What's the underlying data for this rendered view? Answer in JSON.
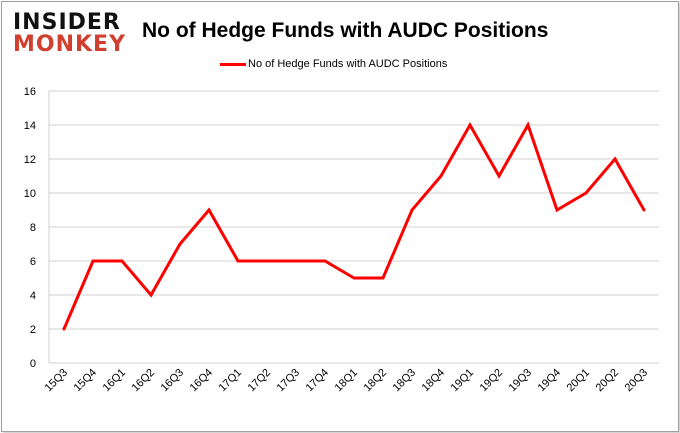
{
  "logo": {
    "line1": "INSIDER",
    "line2": "MONKEY"
  },
  "chart_data": {
    "type": "line",
    "title": "No of Hedge Funds with AUDC Positions",
    "categories": [
      "15Q3",
      "15Q4",
      "16Q1",
      "16Q2",
      "16Q3",
      "16Q4",
      "17Q1",
      "17Q2",
      "17Q3",
      "17Q4",
      "18Q1",
      "18Q2",
      "18Q3",
      "18Q4",
      "19Q1",
      "19Q2",
      "19Q3",
      "19Q4",
      "20Q1",
      "20Q2",
      "20Q3"
    ],
    "series": [
      {
        "name": "No of Hedge Funds with AUDC Positions",
        "color": "#ff0000",
        "values": [
          2,
          6,
          6,
          4,
          7,
          9,
          6,
          6,
          6,
          6,
          5,
          5,
          9,
          11,
          14,
          11,
          14,
          9,
          10,
          12,
          9
        ]
      }
    ],
    "ylim": [
      0,
      16
    ],
    "yticks": [
      0,
      2,
      4,
      6,
      8,
      10,
      12,
      14,
      16
    ],
    "grid": true,
    "legend": "top-center",
    "xlabel": "",
    "ylabel": ""
  }
}
